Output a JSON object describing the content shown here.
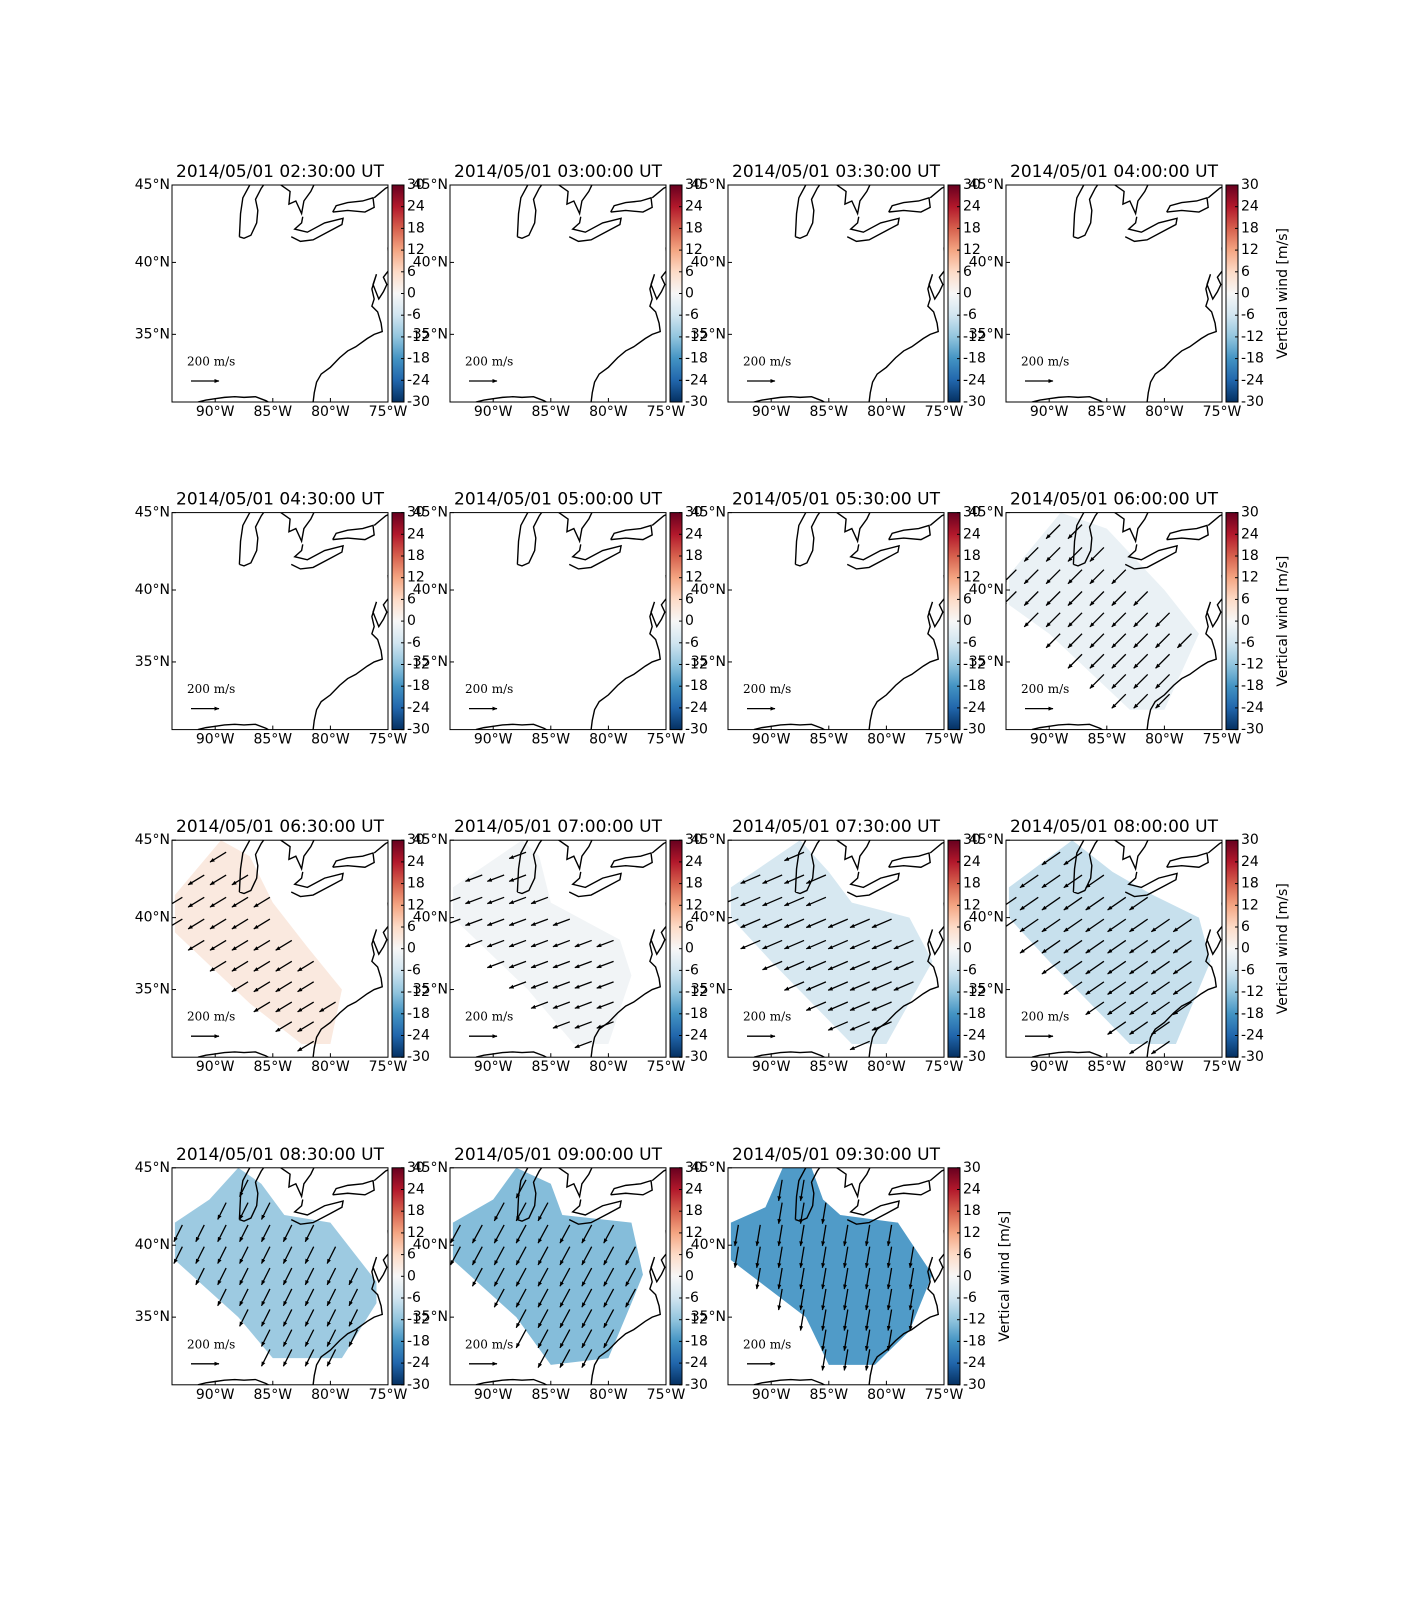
{
  "chart_data": [
    {
      "type": "map",
      "title": "2014/05/01 02:30:00 UT",
      "xlim": [
        -93.75,
        -75
      ],
      "ylim": [
        30,
        45
      ],
      "xticks": [
        {
          "value": -90,
          "label": "90°W"
        },
        {
          "value": -85,
          "label": "85°W"
        },
        {
          "value": -80,
          "label": "80°W"
        },
        {
          "value": -75,
          "label": "75°W"
        }
      ],
      "yticks": [
        {
          "value": 35,
          "label": "35°N"
        },
        {
          "value": 40,
          "label": "40°N"
        },
        {
          "value": 45,
          "label": "45°N"
        }
      ],
      "clim": [
        -30,
        30
      ],
      "cticks": [
        30,
        24,
        18,
        12,
        6,
        0,
        -6,
        -12,
        -18,
        -24,
        -30
      ],
      "quiver_key": {
        "value": 200,
        "label": "200 m/s"
      }
    },
    {
      "type": "map",
      "title": "2014/05/01 03:00:00 UT",
      "xlim": [
        -93.75,
        -75
      ],
      "ylim": [
        30,
        45
      ],
      "xticks": [
        {
          "value": -90,
          "label": "90°W"
        },
        {
          "value": -85,
          "label": "85°W"
        },
        {
          "value": -80,
          "label": "80°W"
        },
        {
          "value": -75,
          "label": "75°W"
        }
      ],
      "yticks": [
        {
          "value": 35,
          "label": "35°N"
        },
        {
          "value": 40,
          "label": "40°N"
        },
        {
          "value": 45,
          "label": "45°N"
        }
      ],
      "clim": [
        -30,
        30
      ],
      "cticks": [
        30,
        24,
        18,
        12,
        6,
        0,
        -6,
        -12,
        -18,
        -24,
        -30
      ],
      "quiver_key": {
        "value": 200,
        "label": "200 m/s"
      }
    },
    {
      "type": "map",
      "title": "2014/05/01 03:30:00 UT",
      "xlim": [
        -93.75,
        -75
      ],
      "ylim": [
        30,
        45
      ],
      "xticks": [
        {
          "value": -90,
          "label": "90°W"
        },
        {
          "value": -85,
          "label": "85°W"
        },
        {
          "value": -80,
          "label": "80°W"
        },
        {
          "value": -75,
          "label": "75°W"
        }
      ],
      "yticks": [
        {
          "value": 35,
          "label": "35°N"
        },
        {
          "value": 40,
          "label": "40°N"
        },
        {
          "value": 45,
          "label": "45°N"
        }
      ],
      "clim": [
        -30,
        30
      ],
      "cticks": [
        30,
        24,
        18,
        12,
        6,
        0,
        -6,
        -12,
        -18,
        -24,
        -30
      ],
      "quiver_key": {
        "value": 200,
        "label": "200 m/s"
      }
    },
    {
      "type": "map",
      "title": "2014/05/01 04:00:00 UT",
      "xlim": [
        -93.75,
        -75
      ],
      "ylim": [
        30,
        45
      ],
      "xticks": [
        {
          "value": -90,
          "label": "90°W"
        },
        {
          "value": -85,
          "label": "85°W"
        },
        {
          "value": -80,
          "label": "80°W"
        },
        {
          "value": -75,
          "label": "75°W"
        }
      ],
      "yticks": [
        {
          "value": 35,
          "label": "35°N"
        },
        {
          "value": 40,
          "label": "40°N"
        },
        {
          "value": 45,
          "label": "45°N"
        }
      ],
      "clim": [
        -30,
        30
      ],
      "cticks": [
        30,
        24,
        18,
        12,
        6,
        0,
        -6,
        -12,
        -18,
        -24,
        -30
      ],
      "clabel": "Vertical wind [m/s]",
      "quiver_key": {
        "value": 200,
        "label": "200 m/s"
      }
    },
    {
      "type": "map",
      "title": "2014/05/01 04:30:00 UT",
      "xlim": [
        -93.75,
        -75
      ],
      "ylim": [
        30,
        45
      ],
      "xticks": [
        {
          "value": -90,
          "label": "90°W"
        },
        {
          "value": -85,
          "label": "85°W"
        },
        {
          "value": -80,
          "label": "80°W"
        },
        {
          "value": -75,
          "label": "75°W"
        }
      ],
      "yticks": [
        {
          "value": 35,
          "label": "35°N"
        },
        {
          "value": 40,
          "label": "40°N"
        },
        {
          "value": 45,
          "label": "45°N"
        }
      ],
      "clim": [
        -30,
        30
      ],
      "cticks": [
        30,
        24,
        18,
        12,
        6,
        0,
        -6,
        -12,
        -18,
        -24,
        -30
      ],
      "quiver_key": {
        "value": 200,
        "label": "200 m/s"
      }
    },
    {
      "type": "map",
      "title": "2014/05/01 05:00:00 UT",
      "xlim": [
        -93.75,
        -75
      ],
      "ylim": [
        30,
        45
      ],
      "xticks": [
        {
          "value": -90,
          "label": "90°W"
        },
        {
          "value": -85,
          "label": "85°W"
        },
        {
          "value": -80,
          "label": "80°W"
        },
        {
          "value": -75,
          "label": "75°W"
        }
      ],
      "yticks": [
        {
          "value": 35,
          "label": "35°N"
        },
        {
          "value": 40,
          "label": "40°N"
        },
        {
          "value": 45,
          "label": "45°N"
        }
      ],
      "clim": [
        -30,
        30
      ],
      "cticks": [
        30,
        24,
        18,
        12,
        6,
        0,
        -6,
        -12,
        -18,
        -24,
        -30
      ],
      "quiver_key": {
        "value": 200,
        "label": "200 m/s"
      }
    },
    {
      "type": "map",
      "title": "2014/05/01 05:30:00 UT",
      "xlim": [
        -93.75,
        -75
      ],
      "ylim": [
        30,
        45
      ],
      "xticks": [
        {
          "value": -90,
          "label": "90°W"
        },
        {
          "value": -85,
          "label": "85°W"
        },
        {
          "value": -80,
          "label": "80°W"
        },
        {
          "value": -75,
          "label": "75°W"
        }
      ],
      "yticks": [
        {
          "value": 35,
          "label": "35°N"
        },
        {
          "value": 40,
          "label": "40°N"
        },
        {
          "value": 45,
          "label": "45°N"
        }
      ],
      "clim": [
        -30,
        30
      ],
      "cticks": [
        30,
        24,
        18,
        12,
        6,
        0,
        -6,
        -12,
        -18,
        -24,
        -30
      ],
      "quiver_key": {
        "value": 200,
        "label": "200 m/s"
      }
    },
    {
      "type": "map",
      "title": "2014/05/01 06:00:00 UT",
      "xlim": [
        -93.75,
        -75
      ],
      "ylim": [
        30,
        45
      ],
      "xticks": [
        {
          "value": -90,
          "label": "90°W"
        },
        {
          "value": -85,
          "label": "85°W"
        },
        {
          "value": -80,
          "label": "80°W"
        },
        {
          "value": -75,
          "label": "75°W"
        }
      ],
      "yticks": [
        {
          "value": 35,
          "label": "35°N"
        },
        {
          "value": 40,
          "label": "40°N"
        },
        {
          "value": 45,
          "label": "45°N"
        }
      ],
      "clim": [
        -30,
        30
      ],
      "cticks": [
        30,
        24,
        18,
        12,
        6,
        0,
        -6,
        -12,
        -18,
        -24,
        -30
      ],
      "clabel": "Vertical wind [m/s]",
      "quiver_key": {
        "value": 200,
        "label": "200 m/s"
      },
      "vertical_wind": -2,
      "wind_u": -100,
      "wind_v": -100,
      "region_lon": [
        -93.5,
        -89,
        -85,
        -80,
        -77,
        -80,
        -83,
        -90,
        -93.5
      ],
      "region_lat": [
        41,
        45,
        44,
        40,
        37,
        31.5,
        31.5,
        37,
        39
      ]
    },
    {
      "type": "map",
      "title": "2014/05/01 06:30:00 UT",
      "xlim": [
        -93.75,
        -75
      ],
      "ylim": [
        30,
        45
      ],
      "xticks": [
        {
          "value": -90,
          "label": "90°W"
        },
        {
          "value": -85,
          "label": "85°W"
        },
        {
          "value": -80,
          "label": "80°W"
        },
        {
          "value": -75,
          "label": "75°W"
        }
      ],
      "yticks": [
        {
          "value": 35,
          "label": "35°N"
        },
        {
          "value": 40,
          "label": "40°N"
        },
        {
          "value": 45,
          "label": "45°N"
        }
      ],
      "clim": [
        -30,
        30
      ],
      "cticks": [
        30,
        24,
        18,
        12,
        6,
        0,
        -6,
        -12,
        -18,
        -24,
        -30
      ],
      "quiver_key": {
        "value": 200,
        "label": "200 m/s"
      },
      "vertical_wind": 3,
      "wind_u": -115,
      "wind_v": -70,
      "region_lon": [
        -93.5,
        -89.5,
        -87,
        -85,
        -82,
        -79,
        -80,
        -82.5,
        -87,
        -93.5
      ],
      "region_lat": [
        41.5,
        45,
        44,
        41,
        38,
        35,
        31,
        31,
        34,
        39
      ]
    },
    {
      "type": "map",
      "title": "2014/05/01 07:00:00 UT",
      "xlim": [
        -93.75,
        -75
      ],
      "ylim": [
        30,
        45
      ],
      "xticks": [
        {
          "value": -90,
          "label": "90°W"
        },
        {
          "value": -85,
          "label": "85°W"
        },
        {
          "value": -80,
          "label": "80°W"
        },
        {
          "value": -75,
          "label": "75°W"
        }
      ],
      "yticks": [
        {
          "value": 35,
          "label": "35°N"
        },
        {
          "value": 40,
          "label": "40°N"
        },
        {
          "value": 45,
          "label": "45°N"
        }
      ],
      "clim": [
        -30,
        30
      ],
      "cticks": [
        30,
        24,
        18,
        12,
        6,
        0,
        -6,
        -12,
        -18,
        -24,
        -30
      ],
      "quiver_key": {
        "value": 200,
        "label": "200 m/s"
      },
      "vertical_wind": -1,
      "wind_u": -120,
      "wind_v": -45,
      "region_lon": [
        -93.5,
        -87.5,
        -86,
        -85,
        -79,
        -78,
        -80,
        -83,
        -87,
        -93.5
      ],
      "region_lat": [
        42,
        45,
        44,
        41,
        38.5,
        36,
        31,
        31,
        35,
        40
      ]
    },
    {
      "type": "map",
      "title": "2014/05/01 07:30:00 UT",
      "xlim": [
        -93.75,
        -75
      ],
      "ylim": [
        30,
        45
      ],
      "xticks": [
        {
          "value": -90,
          "label": "90°W"
        },
        {
          "value": -85,
          "label": "85°W"
        },
        {
          "value": -80,
          "label": "80°W"
        },
        {
          "value": -75,
          "label": "75°W"
        }
      ],
      "yticks": [
        {
          "value": 35,
          "label": "35°N"
        },
        {
          "value": 40,
          "label": "40°N"
        },
        {
          "value": 45,
          "label": "45°N"
        }
      ],
      "clim": [
        -30,
        30
      ],
      "cticks": [
        30,
        24,
        18,
        12,
        6,
        0,
        -6,
        -12,
        -18,
        -24,
        -30
      ],
      "quiver_key": {
        "value": 200,
        "label": "200 m/s"
      },
      "vertical_wind": -5,
      "wind_u": -140,
      "wind_v": -60,
      "region_lon": [
        -93.5,
        -87.5,
        -85,
        -83,
        -78,
        -76,
        -80,
        -83,
        -90,
        -93.5
      ],
      "region_lat": [
        42,
        45,
        43,
        41,
        40,
        37,
        31,
        31,
        37,
        40
      ]
    },
    {
      "type": "map",
      "title": "2014/05/01 08:00:00 UT",
      "xlim": [
        -93.75,
        -75
      ],
      "ylim": [
        30,
        45
      ],
      "xticks": [
        {
          "value": -90,
          "label": "90°W"
        },
        {
          "value": -85,
          "label": "85°W"
        },
        {
          "value": -80,
          "label": "80°W"
        },
        {
          "value": -75,
          "label": "75°W"
        }
      ],
      "yticks": [
        {
          "value": 35,
          "label": "35°N"
        },
        {
          "value": 40,
          "label": "40°N"
        },
        {
          "value": 45,
          "label": "45°N"
        }
      ],
      "clim": [
        -30,
        30
      ],
      "cticks": [
        30,
        24,
        18,
        12,
        6,
        0,
        -6,
        -12,
        -18,
        -24,
        -30
      ],
      "clabel": "Vertical wind [m/s]",
      "quiver_key": {
        "value": 200,
        "label": "200 m/s"
      },
      "vertical_wind": -7,
      "wind_u": -130,
      "wind_v": -90,
      "region_lon": [
        -93.5,
        -88,
        -84.5,
        -81,
        -77,
        -76,
        -79,
        -83,
        -90,
        -93.5
      ],
      "region_lat": [
        42,
        45,
        43,
        41.5,
        40,
        37,
        31,
        31,
        37,
        40
      ]
    },
    {
      "type": "map",
      "title": "2014/05/01 08:30:00 UT",
      "xlim": [
        -93.75,
        -75
      ],
      "ylim": [
        30,
        45
      ],
      "xticks": [
        {
          "value": -90,
          "label": "90°W"
        },
        {
          "value": -85,
          "label": "85°W"
        },
        {
          "value": -80,
          "label": "80°W"
        },
        {
          "value": -75,
          "label": "75°W"
        }
      ],
      "yticks": [
        {
          "value": 35,
          "label": "35°N"
        },
        {
          "value": 40,
          "label": "40°N"
        },
        {
          "value": 45,
          "label": "45°N"
        }
      ],
      "clim": [
        -30,
        30
      ],
      "cticks": [
        30,
        24,
        18,
        12,
        6,
        0,
        -6,
        -12,
        -18,
        -24,
        -30
      ],
      "quiver_key": {
        "value": 200,
        "label": "200 m/s"
      },
      "vertical_wind": -11,
      "wind_u": -60,
      "wind_v": -120,
      "region_lon": [
        -93.5,
        -90.5,
        -88,
        -86,
        -84,
        -80,
        -76,
        -76,
        -79,
        -85,
        -88,
        -93.5
      ],
      "region_lat": [
        41.5,
        43,
        45,
        44,
        42,
        41.5,
        37.5,
        36,
        32,
        32,
        35,
        39
      ]
    },
    {
      "type": "map",
      "title": "2014/05/01 09:00:00 UT",
      "xlim": [
        -93.75,
        -75
      ],
      "ylim": [
        30,
        45
      ],
      "xticks": [
        {
          "value": -90,
          "label": "90°W"
        },
        {
          "value": -85,
          "label": "85°W"
        },
        {
          "value": -80,
          "label": "80°W"
        },
        {
          "value": -75,
          "label": "75°W"
        }
      ],
      "yticks": [
        {
          "value": 35,
          "label": "35°N"
        },
        {
          "value": 40,
          "label": "40°N"
        },
        {
          "value": 45,
          "label": "45°N"
        }
      ],
      "clim": [
        -30,
        30
      ],
      "cticks": [
        30,
        24,
        18,
        12,
        6,
        0,
        -6,
        -12,
        -18,
        -24,
        -30
      ],
      "quiver_key": {
        "value": 200,
        "label": "200 m/s"
      },
      "vertical_wind": -13,
      "wind_u": -70,
      "wind_v": -130,
      "region_lon": [
        -93.5,
        -90,
        -88,
        -85,
        -84,
        -78,
        -77,
        -78,
        -80,
        -85,
        -88,
        -93.5
      ],
      "region_lat": [
        41.5,
        43,
        45,
        44,
        42,
        41.5,
        38,
        36,
        32,
        31.5,
        35,
        39
      ]
    },
    {
      "type": "map",
      "title": "2014/05/01 09:30:00 UT",
      "xlim": [
        -93.75,
        -75
      ],
      "ylim": [
        30,
        45
      ],
      "xticks": [
        {
          "value": -90,
          "label": "90°W"
        },
        {
          "value": -85,
          "label": "85°W"
        },
        {
          "value": -80,
          "label": "80°W"
        },
        {
          "value": -75,
          "label": "75°W"
        }
      ],
      "yticks": [
        {
          "value": 35,
          "label": "35°N"
        },
        {
          "value": 40,
          "label": "40°N"
        },
        {
          "value": 45,
          "label": "45°N"
        }
      ],
      "clim": [
        -30,
        30
      ],
      "cticks": [
        30,
        24,
        18,
        12,
        6,
        0,
        -6,
        -12,
        -18,
        -24,
        -30
      ],
      "clabel": "Vertical wind [m/s]",
      "quiver_key": {
        "value": 200,
        "label": "200 m/s"
      },
      "vertical_wind": -17,
      "wind_u": -25,
      "wind_v": -150,
      "region_lon": [
        -93.5,
        -90.5,
        -89,
        -86.5,
        -85.5,
        -84,
        -79,
        -76,
        -78,
        -81,
        -85,
        -87,
        -93.5
      ],
      "region_lat": [
        41.5,
        42.5,
        45,
        45,
        43,
        42,
        41.5,
        38,
        34,
        31.5,
        31.5,
        35,
        39
      ]
    }
  ]
}
